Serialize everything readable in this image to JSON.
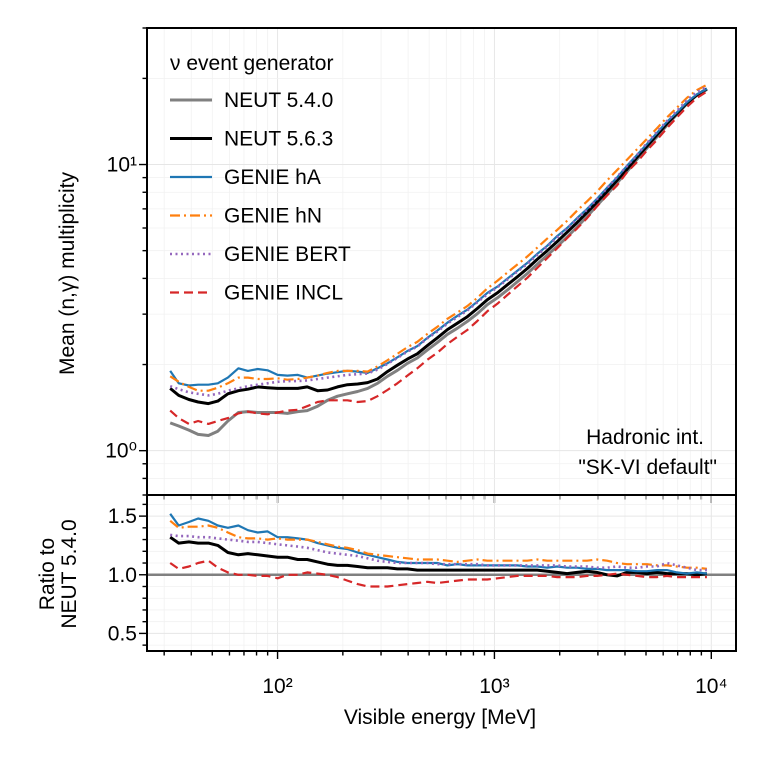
{
  "chart_data": [
    {
      "type": "line",
      "ylabel": "Mean (n,γ) multiplicity",
      "xscale": "log",
      "yscale": "log",
      "xlim": [
        25,
        13000
      ],
      "ylim": [
        0.7,
        30
      ],
      "yticks": [
        {
          "value": 1,
          "label": "10⁰"
        },
        {
          "value": 10,
          "label": "10¹"
        }
      ],
      "grid": true,
      "legend": {
        "title": "ν event generator",
        "placement": "top-left"
      },
      "annotation": [
        "Hadronic int.",
        "\"SK-VI default\""
      ],
      "x": [
        32,
        35,
        39,
        43,
        48,
        53,
        59,
        66,
        73,
        81,
        90,
        100,
        111,
        124,
        137,
        153,
        170,
        189,
        210,
        234,
        260,
        289,
        321,
        357,
        397,
        441,
        491,
        546,
        607,
        675,
        750,
        834,
        927,
        1031,
        1146,
        1274,
        1417,
        1575,
        1751,
        1947,
        2164,
        2406,
        2675,
        2974,
        3307,
        3676,
        4087,
        4544,
        5052,
        5617,
        6245,
        6943,
        7719,
        8582,
        9541
      ],
      "series": [
        {
          "name": "NEUT 5.4.0",
          "color": "#808080",
          "dash": "solid",
          "width": 3,
          "values": [
            1.25,
            1.22,
            1.18,
            1.14,
            1.13,
            1.17,
            1.27,
            1.36,
            1.37,
            1.36,
            1.36,
            1.36,
            1.35,
            1.37,
            1.38,
            1.43,
            1.5,
            1.55,
            1.58,
            1.61,
            1.65,
            1.72,
            1.82,
            1.91,
            2.02,
            2.11,
            2.25,
            2.39,
            2.55,
            2.68,
            2.83,
            3.01,
            3.24,
            3.42,
            3.64,
            3.89,
            4.16,
            4.48,
            4.82,
            5.18,
            5.58,
            6.05,
            6.58,
            7.2,
            7.86,
            8.62,
            9.45,
            10.44,
            11.42,
            12.5,
            13.71,
            14.97,
            16.31,
            17.48,
            18.3
          ]
        },
        {
          "name": "NEUT 5.6.3",
          "color": "#000000",
          "dash": "solid",
          "width": 3,
          "values": [
            1.65,
            1.56,
            1.51,
            1.48,
            1.46,
            1.49,
            1.58,
            1.62,
            1.64,
            1.67,
            1.66,
            1.65,
            1.65,
            1.65,
            1.67,
            1.62,
            1.63,
            1.67,
            1.7,
            1.71,
            1.73,
            1.78,
            1.89,
            1.99,
            2.09,
            2.18,
            2.33,
            2.48,
            2.65,
            2.79,
            2.94,
            3.14,
            3.37,
            3.56,
            3.8,
            4.05,
            4.33,
            4.66,
            5.0,
            5.38,
            5.8,
            6.27,
            6.81,
            7.4,
            8.06,
            8.8,
            9.63,
            10.6,
            11.6,
            12.7,
            13.9,
            15.1,
            16.4,
            17.5,
            18.4
          ]
        },
        {
          "name": "GENIE hA",
          "color": "#1f77b4",
          "dash": "solid",
          "width": 2.2,
          "values": [
            1.9,
            1.72,
            1.69,
            1.7,
            1.7,
            1.72,
            1.8,
            1.94,
            1.9,
            1.93,
            1.91,
            1.84,
            1.83,
            1.84,
            1.8,
            1.83,
            1.86,
            1.88,
            1.9,
            1.89,
            1.87,
            1.94,
            2.02,
            2.12,
            2.23,
            2.32,
            2.48,
            2.63,
            2.8,
            2.96,
            3.11,
            3.32,
            3.56,
            3.74,
            3.99,
            4.25,
            4.53,
            4.87,
            5.2,
            5.62,
            6.0,
            6.5,
            7.0,
            7.6,
            8.3,
            9.0,
            9.9,
            10.8,
            11.8,
            12.9,
            14.1,
            15.2,
            16.5,
            17.6,
            18.4
          ]
        },
        {
          "name": "GENIE hN",
          "color": "#ff7f0e",
          "dash": "dashdot",
          "width": 2.2,
          "values": [
            1.82,
            1.74,
            1.67,
            1.62,
            1.62,
            1.66,
            1.72,
            1.8,
            1.8,
            1.78,
            1.78,
            1.79,
            1.77,
            1.78,
            1.8,
            1.83,
            1.87,
            1.9,
            1.9,
            1.9,
            1.89,
            1.97,
            2.07,
            2.18,
            2.3,
            2.4,
            2.56,
            2.71,
            2.89,
            3.04,
            3.2,
            3.42,
            3.69,
            3.92,
            4.19,
            4.47,
            4.77,
            5.12,
            5.51,
            5.91,
            6.36,
            6.9,
            7.44,
            8.05,
            8.8,
            9.55,
            10.4,
            11.3,
            12.3,
            13.4,
            14.6,
            15.8,
            17.1,
            18.2,
            19.0
          ]
        },
        {
          "name": "GENIE BERT",
          "color": "#9467bd",
          "dash": "dotted",
          "width": 2.6,
          "values": [
            1.68,
            1.64,
            1.6,
            1.58,
            1.56,
            1.58,
            1.62,
            1.65,
            1.68,
            1.7,
            1.72,
            1.74,
            1.75,
            1.75,
            1.76,
            1.78,
            1.8,
            1.82,
            1.84,
            1.85,
            1.86,
            1.92,
            2.01,
            2.11,
            2.22,
            2.31,
            2.47,
            2.61,
            2.78,
            2.93,
            3.09,
            3.3,
            3.52,
            3.72,
            3.96,
            4.22,
            4.49,
            4.83,
            5.17,
            5.56,
            5.97,
            6.45,
            6.96,
            7.58,
            8.28,
            9.05,
            9.88,
            10.8,
            11.9,
            13.0,
            14.2,
            15.4,
            16.8,
            17.9,
            18.7
          ]
        },
        {
          "name": "GENIE INCL",
          "color": "#d62728",
          "dash": "dashed",
          "width": 2.2,
          "values": [
            1.38,
            1.3,
            1.24,
            1.27,
            1.24,
            1.27,
            1.3,
            1.35,
            1.37,
            1.35,
            1.34,
            1.36,
            1.38,
            1.39,
            1.43,
            1.48,
            1.5,
            1.5,
            1.5,
            1.48,
            1.49,
            1.55,
            1.63,
            1.72,
            1.83,
            1.94,
            2.08,
            2.2,
            2.36,
            2.5,
            2.64,
            2.84,
            3.07,
            3.26,
            3.5,
            3.75,
            4.02,
            4.35,
            4.71,
            5.1,
            5.53,
            5.98,
            6.5,
            7.15,
            7.8,
            8.45,
            9.4,
            10.2,
            11.2,
            12.2,
            13.4,
            14.6,
            15.9,
            17.1,
            18.0
          ]
        }
      ]
    },
    {
      "type": "line",
      "xlabel": "Visible energy [MeV]",
      "ylabel": [
        "Ratio to",
        "NEUT 5.4.0"
      ],
      "xscale": "log",
      "xlim": [
        25,
        13000
      ],
      "ylim": [
        0.35,
        1.68
      ],
      "yticks": [
        0.5,
        1.0,
        1.5
      ],
      "xticks": [
        {
          "value": 100,
          "label": "10²"
        },
        {
          "value": 1000,
          "label": "10³"
        },
        {
          "value": 10000,
          "label": "10⁴"
        }
      ],
      "reference_line": {
        "y": 1.0,
        "color": "#808080"
      },
      "grid": true,
      "x": [
        32,
        35,
        39,
        43,
        48,
        53,
        59,
        66,
        73,
        81,
        90,
        100,
        111,
        124,
        137,
        153,
        170,
        189,
        210,
        234,
        260,
        289,
        321,
        357,
        397,
        441,
        491,
        546,
        607,
        675,
        750,
        834,
        927,
        1031,
        1146,
        1274,
        1417,
        1575,
        1751,
        1947,
        2164,
        2406,
        2675,
        2974,
        3307,
        3676,
        4087,
        4544,
        5052,
        5617,
        6245,
        6943,
        7719,
        8582,
        9541
      ],
      "series": [
        {
          "name": "NEUT 5.6.3",
          "color": "#000000",
          "dash": "solid",
          "width": 3,
          "values": [
            1.32,
            1.27,
            1.28,
            1.27,
            1.27,
            1.25,
            1.19,
            1.17,
            1.18,
            1.17,
            1.16,
            1.15,
            1.15,
            1.13,
            1.13,
            1.11,
            1.09,
            1.08,
            1.08,
            1.07,
            1.06,
            1.06,
            1.06,
            1.05,
            1.05,
            1.04,
            1.04,
            1.04,
            1.04,
            1.04,
            1.04,
            1.04,
            1.04,
            1.04,
            1.04,
            1.04,
            1.04,
            1.04,
            1.03,
            1.02,
            1.01,
            1.02,
            1.03,
            1.02,
            1.0,
            0.99,
            1.02,
            1.02,
            1.01,
            1.02,
            1.01,
            1.01,
            1.01,
            1.0,
            1.01
          ]
        },
        {
          "name": "GENIE hA",
          "color": "#1f77b4",
          "dash": "solid",
          "width": 2.2,
          "values": [
            1.52,
            1.42,
            1.45,
            1.48,
            1.46,
            1.42,
            1.4,
            1.42,
            1.38,
            1.36,
            1.37,
            1.32,
            1.32,
            1.31,
            1.3,
            1.27,
            1.25,
            1.23,
            1.22,
            1.19,
            1.17,
            1.15,
            1.13,
            1.11,
            1.1,
            1.1,
            1.1,
            1.1,
            1.08,
            1.09,
            1.08,
            1.08,
            1.08,
            1.08,
            1.08,
            1.08,
            1.07,
            1.07,
            1.06,
            1.07,
            1.06,
            1.06,
            1.05,
            1.05,
            1.04,
            1.04,
            1.04,
            1.03,
            1.03,
            1.04,
            1.04,
            1.02,
            1.01,
            1.02,
            1.01
          ]
        },
        {
          "name": "GENIE hN",
          "color": "#ff7f0e",
          "dash": "dashdot",
          "width": 2.2,
          "values": [
            1.46,
            1.4,
            1.41,
            1.41,
            1.42,
            1.4,
            1.36,
            1.32,
            1.31,
            1.31,
            1.3,
            1.31,
            1.3,
            1.3,
            1.3,
            1.28,
            1.26,
            1.24,
            1.23,
            1.21,
            1.18,
            1.17,
            1.16,
            1.15,
            1.14,
            1.13,
            1.13,
            1.13,
            1.12,
            1.11,
            1.12,
            1.13,
            1.12,
            1.12,
            1.12,
            1.12,
            1.12,
            1.13,
            1.12,
            1.12,
            1.12,
            1.12,
            1.12,
            1.13,
            1.12,
            1.1,
            1.09,
            1.09,
            1.09,
            1.08,
            1.08,
            1.07,
            1.06,
            1.06,
            1.05
          ]
        },
        {
          "name": "GENIE BERT",
          "color": "#9467bd",
          "dash": "dotted",
          "width": 2.6,
          "values": [
            1.34,
            1.33,
            1.33,
            1.32,
            1.32,
            1.31,
            1.3,
            1.29,
            1.28,
            1.28,
            1.27,
            1.26,
            1.25,
            1.24,
            1.23,
            1.21,
            1.19,
            1.18,
            1.17,
            1.16,
            1.14,
            1.12,
            1.11,
            1.1,
            1.1,
            1.1,
            1.1,
            1.09,
            1.09,
            1.09,
            1.09,
            1.09,
            1.08,
            1.08,
            1.08,
            1.08,
            1.08,
            1.08,
            1.08,
            1.08,
            1.07,
            1.07,
            1.07,
            1.06,
            1.06,
            1.07,
            1.06,
            1.06,
            1.07,
            1.07,
            1.1,
            1.08,
            1.06,
            1.04,
            1.04
          ]
        },
        {
          "name": "GENIE INCL",
          "color": "#d62728",
          "dash": "dashed",
          "width": 2.2,
          "values": [
            1.1,
            1.05,
            1.07,
            1.1,
            1.12,
            1.06,
            1.02,
            1.0,
            1.0,
            0.99,
            0.99,
            0.97,
            1.0,
            1.0,
            1.02,
            1.01,
            1.0,
            0.98,
            0.95,
            0.92,
            0.9,
            0.9,
            0.9,
            0.91,
            0.92,
            0.93,
            0.94,
            0.93,
            0.94,
            0.95,
            0.96,
            0.96,
            0.96,
            0.97,
            0.98,
            0.99,
            0.99,
            0.99,
            0.99,
            0.98,
            0.98,
            0.98,
            0.99,
            0.99,
            1.0,
            1.01,
            1.0,
            0.99,
            0.98,
            0.98,
            0.99,
            0.98,
            0.98,
            0.98,
            0.98
          ]
        }
      ]
    }
  ]
}
